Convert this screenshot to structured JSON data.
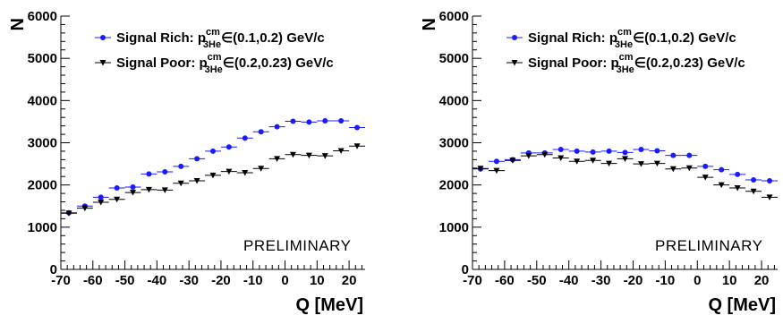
{
  "chart_data": [
    {
      "type": "scatter",
      "xlabel": "Q [MeV]",
      "ylabel": "N",
      "xlim": [
        -70,
        25
      ],
      "ylim": [
        0,
        6000
      ],
      "x_ticks": [
        -70,
        -60,
        -50,
        -40,
        -30,
        -20,
        -10,
        0,
        10,
        20
      ],
      "x_tick_labels": [
        "-70",
        "-60",
        "-50",
        "-40",
        "-30",
        "-20",
        "-10",
        "0",
        "10",
        "20"
      ],
      "y_ticks": [
        0,
        1000,
        2000,
        3000,
        4000,
        5000,
        6000
      ],
      "y_tick_labels": [
        "0",
        "1000",
        "2000",
        "3000",
        "4000",
        "5000",
        "6000"
      ],
      "annotation": "PRELIMINARY",
      "x": [
        -67.5,
        -62.5,
        -57.5,
        -52.5,
        -47.5,
        -42.5,
        -37.5,
        -32.5,
        -27.5,
        -22.5,
        -17.5,
        -12.5,
        -7.5,
        -2.5,
        2.5,
        7.5,
        12.5,
        17.5,
        22.5
      ],
      "series": [
        {
          "legend_main": "Signal Rich: p",
          "legend_sup": "cm",
          "legend_sub": "3He",
          "legend_tail": "∈(0.1,0.2) GeV/c",
          "marker": "circle",
          "color": "#1a1aff",
          "values": [
            1340,
            1500,
            1710,
            1930,
            1950,
            2260,
            2310,
            2440,
            2620,
            2800,
            2900,
            3110,
            3260,
            3380,
            3510,
            3490,
            3520,
            3520,
            3360
          ]
        },
        {
          "legend_main": "Signal Poor: p",
          "legend_sup": "cm",
          "legend_sub": "3He",
          "legend_tail": "∈(0.2,0.23) GeV/c",
          "marker": "triangle-down",
          "color": "#000000",
          "values": [
            1330,
            1450,
            1590,
            1660,
            1820,
            1890,
            1880,
            2040,
            2100,
            2230,
            2320,
            2290,
            2390,
            2620,
            2720,
            2700,
            2690,
            2810,
            2920
          ]
        }
      ]
    },
    {
      "type": "scatter",
      "xlabel": "Q [MeV]",
      "ylabel": "N",
      "xlim": [
        -70,
        25
      ],
      "ylim": [
        0,
        6000
      ],
      "x_ticks": [
        -70,
        -60,
        -50,
        -40,
        -30,
        -20,
        -10,
        0,
        10,
        20
      ],
      "x_tick_labels": [
        "-70",
        "-60",
        "-50",
        "-40",
        "-30",
        "-20",
        "-10",
        "0",
        "10",
        "20"
      ],
      "y_ticks": [
        0,
        1000,
        2000,
        3000,
        4000,
        5000,
        6000
      ],
      "y_tick_labels": [
        "0",
        "1000",
        "2000",
        "3000",
        "4000",
        "5000",
        "6000"
      ],
      "annotation": "PRELIMINARY",
      "x": [
        -67.5,
        -62.5,
        -57.5,
        -52.5,
        -47.5,
        -42.5,
        -37.5,
        -32.5,
        -27.5,
        -22.5,
        -17.5,
        -12.5,
        -7.5,
        -2.5,
        2.5,
        7.5,
        12.5,
        17.5,
        22.5
      ],
      "series": [
        {
          "legend_main": "Signal Rich: p",
          "legend_sup": "cm",
          "legend_sub": "3He",
          "legend_tail": "∈(0.1,0.2) GeV/c",
          "marker": "circle",
          "color": "#1a1aff",
          "values": [
            2380,
            2560,
            2600,
            2760,
            2760,
            2840,
            2800,
            2780,
            2800,
            2770,
            2840,
            2810,
            2700,
            2700,
            2440,
            2360,
            2250,
            2120,
            2100
          ]
        },
        {
          "legend_main": "Signal Poor: p",
          "legend_sup": "cm",
          "legend_sub": "3He",
          "legend_tail": "∈(0.2,0.23) GeV/c",
          "marker": "triangle-down",
          "color": "#000000",
          "values": [
            2390,
            2340,
            2580,
            2690,
            2720,
            2640,
            2560,
            2580,
            2510,
            2620,
            2500,
            2510,
            2380,
            2400,
            2180,
            2000,
            1930,
            1850,
            1710
          ]
        }
      ]
    }
  ]
}
